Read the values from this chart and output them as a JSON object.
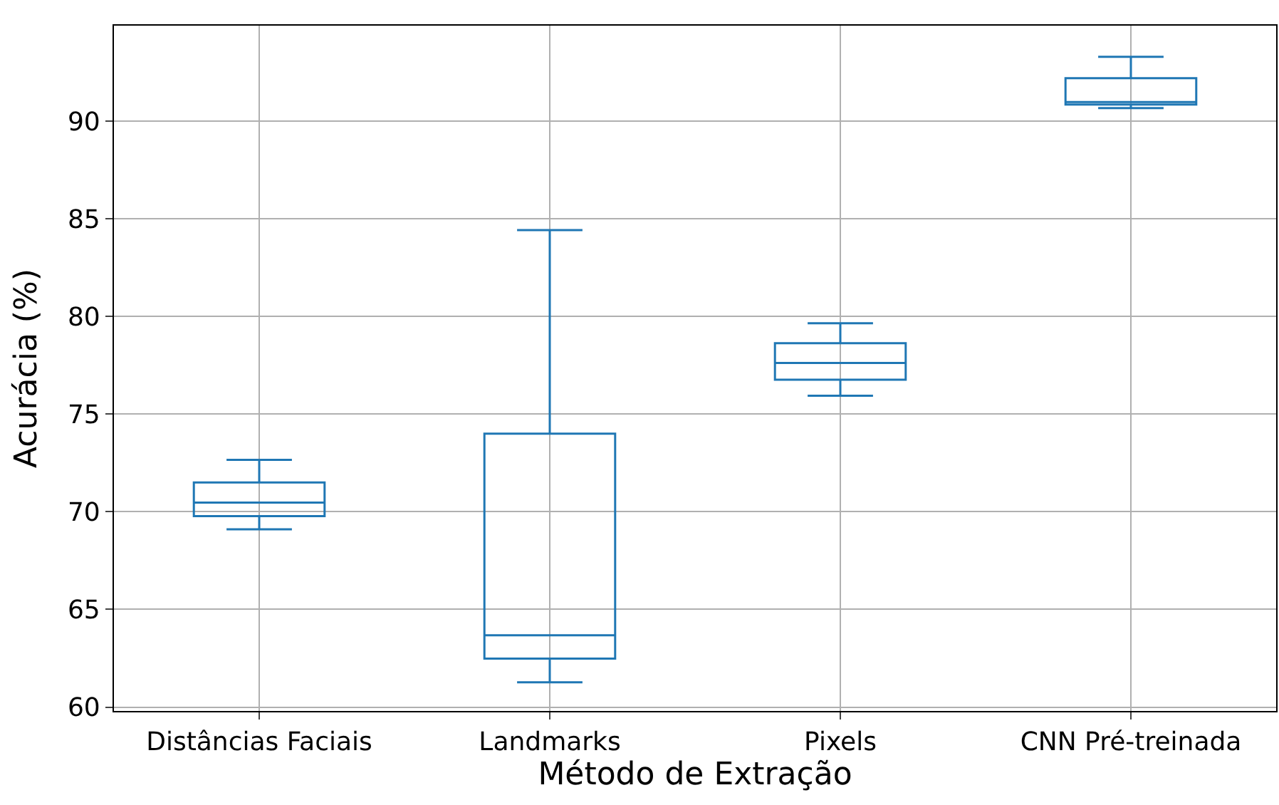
{
  "chart_data": {
    "type": "box",
    "xlabel": "Método de Extração",
    "ylabel": "Acurácia (%)",
    "categories": [
      "Distâncias Faciais",
      "Landmarks",
      "Pixels",
      "CNN Pré-treinada"
    ],
    "series": [
      {
        "color": "#1f77b4",
        "boxes": [
          {
            "low": 69.1,
            "q1": 69.78,
            "median": 70.47,
            "q3": 71.5,
            "high": 72.66
          },
          {
            "low": 61.27,
            "q1": 62.48,
            "median": 63.68,
            "q3": 74.0,
            "high": 84.43
          },
          {
            "low": 75.95,
            "q1": 76.77,
            "median": 77.62,
            "q3": 78.64,
            "high": 79.66
          },
          {
            "low": 90.68,
            "q1": 90.86,
            "median": 90.99,
            "q3": 92.21,
            "high": 93.3
          }
        ]
      }
    ],
    "ylim": [
      59.8,
      94.9
    ],
    "yticks": [
      60,
      65,
      70,
      75,
      80,
      85,
      90
    ],
    "grid": true,
    "legend": false
  }
}
